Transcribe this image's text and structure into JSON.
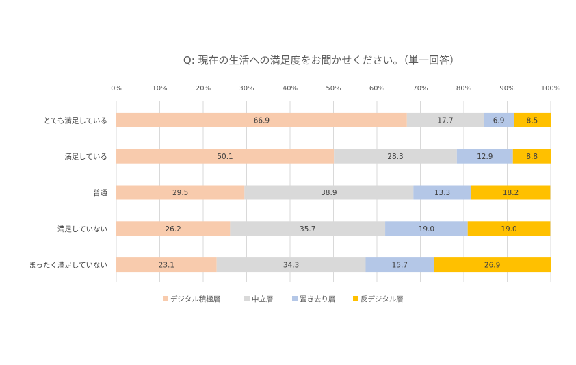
{
  "chart_data": {
    "type": "bar",
    "orientation": "horizontal",
    "stacked": "percent",
    "title": "Q: 現在の生活への満足度をお聞かせください。（単一回答）",
    "x_ticks": [
      "0%",
      "10%",
      "20%",
      "30%",
      "40%",
      "50%",
      "60%",
      "70%",
      "80%",
      "90%",
      "100%"
    ],
    "xlim": [
      0,
      100
    ],
    "grid": true,
    "legend_position": "bottom",
    "categories": [
      "とても満足している",
      "満足している",
      "普通",
      "満足していない",
      "まったく満足していない"
    ],
    "series": [
      {
        "name": "デジタル積極層",
        "color": "#F8CBAD",
        "values": [
          66.9,
          50.1,
          29.5,
          26.2,
          23.1
        ],
        "labels": [
          "66.9",
          "50.1",
          "29.5",
          "26.2",
          "23.1"
        ]
      },
      {
        "name": "中立層",
        "color": "#D9D9D9",
        "values": [
          17.7,
          28.3,
          38.9,
          35.7,
          34.3
        ],
        "labels": [
          "17.7",
          "28.3",
          "38.9",
          "35.7",
          "34.3"
        ]
      },
      {
        "name": "置き去り層",
        "color": "#B4C7E7",
        "values": [
          6.9,
          12.9,
          13.3,
          19.0,
          15.7
        ],
        "labels": [
          "6.9",
          "12.9",
          "13.3",
          "19.0",
          "15.7"
        ]
      },
      {
        "name": "反デジタル層",
        "color": "#FFC000",
        "values": [
          8.5,
          8.8,
          18.2,
          19.0,
          26.9
        ],
        "labels": [
          "8.5",
          "8.8",
          "18.2",
          "19.0",
          "26.9"
        ]
      }
    ]
  }
}
